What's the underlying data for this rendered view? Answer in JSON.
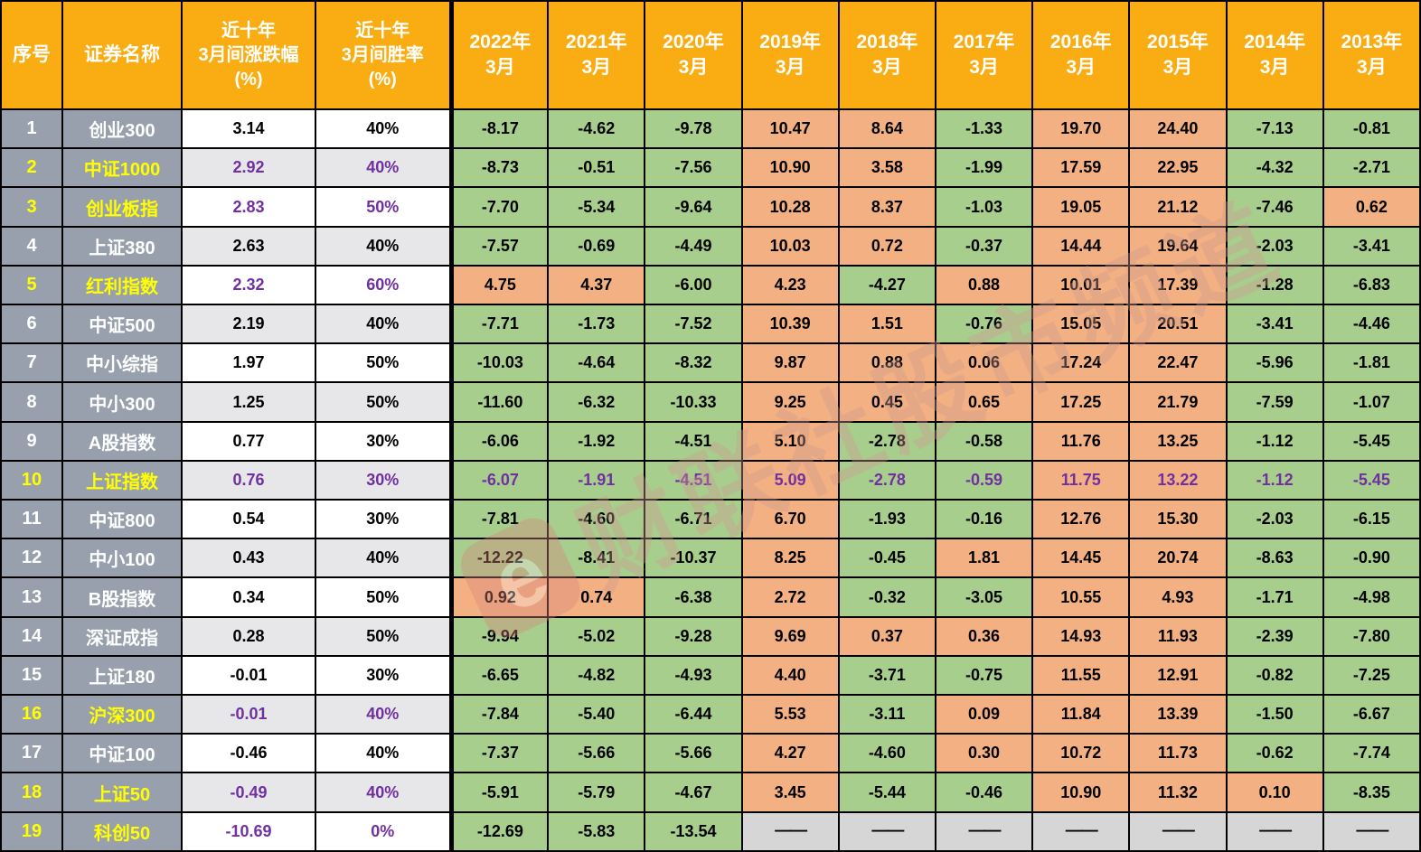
{
  "colors": {
    "header-bg": "#F9AD13",
    "side-bg": "#97A0AC",
    "green": "#A8CE8E",
    "orange": "#F3B183",
    "stripe": "#E7E7E9",
    "dash-bg": "#D6D6D6",
    "purple": "#7030A0",
    "yellow": "#FFFF00"
  },
  "header": {
    "seq": "序号",
    "name": "证券名称",
    "change": "近十年\n3月间涨跌幅\n(%)",
    "winrate": "近十年\n3月间胜率\n(%)",
    "years": [
      "2022年\n3月",
      "2021年\n3月",
      "2020年\n3月",
      "2019年\n3月",
      "2018年\n3月",
      "2017年\n3月",
      "2016年\n3月",
      "2015年\n3月",
      "2014年\n3月",
      "2013年\n3月"
    ]
  },
  "watermark": {
    "logo": "e",
    "text": "财联社股市频道"
  },
  "rows": [
    {
      "seq": "1",
      "name": "创业300",
      "accent": false,
      "accent_years": false,
      "change": "3.14",
      "winrate": "40%",
      "values": [
        "-8.17",
        "-4.62",
        "-9.78",
        "10.47",
        "8.64",
        "-1.33",
        "19.70",
        "24.40",
        "-7.13",
        "-0.81"
      ]
    },
    {
      "seq": "2",
      "name": "中证1000",
      "accent": true,
      "accent_years": false,
      "change": "2.92",
      "winrate": "40%",
      "values": [
        "-8.73",
        "-0.51",
        "-7.56",
        "10.90",
        "3.58",
        "-1.99",
        "17.59",
        "22.95",
        "-4.32",
        "-2.71"
      ]
    },
    {
      "seq": "3",
      "name": "创业板指",
      "accent": true,
      "accent_years": false,
      "change": "2.83",
      "winrate": "50%",
      "values": [
        "-7.70",
        "-5.34",
        "-9.64",
        "10.28",
        "8.37",
        "-1.03",
        "19.05",
        "21.12",
        "-7.46",
        "0.62"
      ]
    },
    {
      "seq": "4",
      "name": "上证380",
      "accent": false,
      "accent_years": false,
      "change": "2.63",
      "winrate": "40%",
      "values": [
        "-7.57",
        "-0.69",
        "-4.49",
        "10.03",
        "0.72",
        "-0.37",
        "14.44",
        "19.64",
        "-2.03",
        "-3.41"
      ]
    },
    {
      "seq": "5",
      "name": "红利指数",
      "accent": true,
      "accent_years": false,
      "change": "2.32",
      "winrate": "60%",
      "values": [
        "4.75",
        "4.37",
        "-6.00",
        "4.23",
        "-4.27",
        "0.88",
        "10.01",
        "17.39",
        "-1.28",
        "-6.83"
      ]
    },
    {
      "seq": "6",
      "name": "中证500",
      "accent": false,
      "accent_years": false,
      "change": "2.19",
      "winrate": "40%",
      "values": [
        "-7.71",
        "-1.73",
        "-7.52",
        "10.39",
        "1.51",
        "-0.76",
        "15.05",
        "20.51",
        "-3.41",
        "-4.46"
      ]
    },
    {
      "seq": "7",
      "name": "中小综指",
      "accent": false,
      "accent_years": false,
      "change": "1.97",
      "winrate": "50%",
      "values": [
        "-10.03",
        "-4.64",
        "-8.32",
        "9.87",
        "0.88",
        "0.06",
        "17.24",
        "22.47",
        "-5.96",
        "-1.81"
      ]
    },
    {
      "seq": "8",
      "name": "中小300",
      "accent": false,
      "accent_years": false,
      "change": "1.25",
      "winrate": "50%",
      "values": [
        "-11.60",
        "-6.32",
        "-10.33",
        "9.25",
        "0.45",
        "0.65",
        "17.25",
        "21.79",
        "-7.59",
        "-1.07"
      ]
    },
    {
      "seq": "9",
      "name": "A股指数",
      "accent": false,
      "accent_years": false,
      "change": "0.77",
      "winrate": "30%",
      "values": [
        "-6.06",
        "-1.92",
        "-4.51",
        "5.10",
        "-2.78",
        "-0.58",
        "11.76",
        "13.25",
        "-1.12",
        "-5.45"
      ]
    },
    {
      "seq": "10",
      "name": "上证指数",
      "accent": true,
      "accent_years": true,
      "change": "0.76",
      "winrate": "30%",
      "values": [
        "-6.07",
        "-1.91",
        "-4.51",
        "5.09",
        "-2.78",
        "-0.59",
        "11.75",
        "13.22",
        "-1.12",
        "-5.45"
      ]
    },
    {
      "seq": "11",
      "name": "中证800",
      "accent": false,
      "accent_years": false,
      "change": "0.54",
      "winrate": "30%",
      "values": [
        "-7.81",
        "-4.60",
        "-6.71",
        "6.70",
        "-1.93",
        "-0.16",
        "12.76",
        "15.30",
        "-2.03",
        "-6.15"
      ]
    },
    {
      "seq": "12",
      "name": "中小100",
      "accent": false,
      "accent_years": false,
      "change": "0.43",
      "winrate": "40%",
      "values": [
        "-12.22",
        "-8.41",
        "-10.37",
        "8.25",
        "-0.45",
        "1.81",
        "14.45",
        "20.74",
        "-8.63",
        "-0.90"
      ]
    },
    {
      "seq": "13",
      "name": "B股指数",
      "accent": false,
      "accent_years": false,
      "change": "0.34",
      "winrate": "50%",
      "values": [
        "0.92",
        "0.74",
        "-6.38",
        "2.72",
        "-0.32",
        "-3.05",
        "10.55",
        "4.93",
        "-1.71",
        "-4.98"
      ]
    },
    {
      "seq": "14",
      "name": "深证成指",
      "accent": false,
      "accent_years": false,
      "change": "0.28",
      "winrate": "50%",
      "values": [
        "-9.94",
        "-5.02",
        "-9.28",
        "9.69",
        "0.37",
        "0.36",
        "14.93",
        "11.93",
        "-2.39",
        "-7.80"
      ]
    },
    {
      "seq": "15",
      "name": "上证180",
      "accent": false,
      "accent_years": false,
      "change": "-0.01",
      "winrate": "30%",
      "values": [
        "-6.65",
        "-4.82",
        "-4.93",
        "4.40",
        "-3.71",
        "-0.75",
        "11.55",
        "12.91",
        "-0.82",
        "-7.25"
      ]
    },
    {
      "seq": "16",
      "name": "沪深300",
      "accent": true,
      "accent_years": false,
      "change": "-0.01",
      "winrate": "40%",
      "values": [
        "-7.84",
        "-5.40",
        "-6.44",
        "5.53",
        "-3.11",
        "0.09",
        "11.84",
        "13.39",
        "-1.50",
        "-6.67"
      ]
    },
    {
      "seq": "17",
      "name": "中证100",
      "accent": false,
      "accent_years": false,
      "change": "-0.46",
      "winrate": "40%",
      "values": [
        "-7.37",
        "-5.66",
        "-5.66",
        "4.27",
        "-4.60",
        "0.30",
        "10.72",
        "11.73",
        "-0.62",
        "-7.74"
      ]
    },
    {
      "seq": "18",
      "name": "上证50",
      "accent": true,
      "accent_years": false,
      "change": "-0.49",
      "winrate": "40%",
      "values": [
        "-5.91",
        "-5.79",
        "-4.67",
        "3.45",
        "-5.44",
        "-0.46",
        "10.90",
        "11.32",
        "0.10",
        "-8.35"
      ]
    },
    {
      "seq": "19",
      "name": "科创50",
      "accent": true,
      "accent_years": false,
      "change": "-10.69",
      "winrate": "0%",
      "values": [
        "-12.69",
        "-5.83",
        "-13.54",
        "——",
        "——",
        "——",
        "——",
        "——",
        "——",
        "——"
      ]
    }
  ]
}
